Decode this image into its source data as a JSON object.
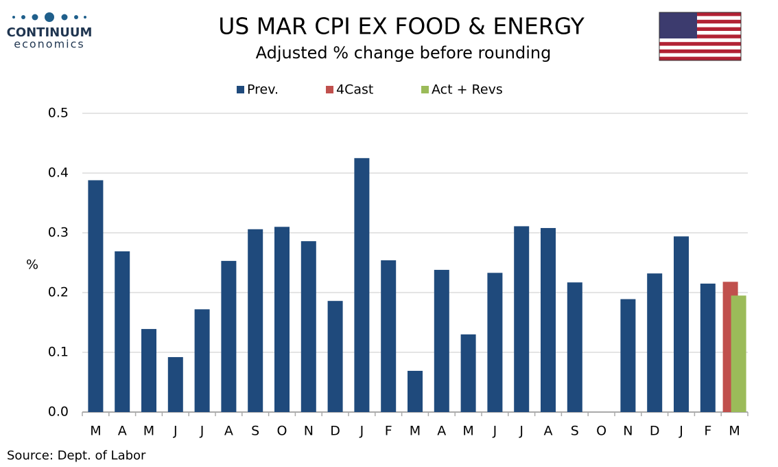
{
  "logo": {
    "name": "CONTINUUM",
    "tagline": "economics"
  },
  "chart_data": {
    "type": "bar",
    "title": "US MAR CPI EX FOOD & ENERGY",
    "subtitle": "Adjusted % change before rounding",
    "y_label": "%",
    "source": "Source: Dept. of Labor",
    "categories": [
      "M",
      "A",
      "M",
      "J",
      "J",
      "A",
      "S",
      "O",
      "N",
      "D",
      "J",
      "F",
      "M",
      "A",
      "M",
      "J",
      "J",
      "A",
      "S",
      "O",
      "N",
      "D",
      "J",
      "F",
      "M"
    ],
    "series": [
      {
        "name": "Prev.",
        "color": "#1f4a7c",
        "values": [
          0.388,
          0.269,
          0.139,
          0.092,
          0.172,
          0.253,
          0.306,
          0.31,
          0.286,
          0.186,
          0.425,
          0.254,
          0.069,
          0.238,
          0.13,
          0.233,
          0.311,
          0.308,
          0.217,
          0,
          0.189,
          0.232,
          0.294,
          0.215,
          null
        ]
      },
      {
        "name": "4Cast",
        "color": "#c0504d",
        "values": [
          null,
          null,
          null,
          null,
          null,
          null,
          null,
          null,
          null,
          null,
          null,
          null,
          null,
          null,
          null,
          null,
          null,
          null,
          null,
          null,
          null,
          null,
          null,
          null,
          0.218
        ]
      },
      {
        "name": "Act + Revs",
        "color": "#9bbb59",
        "values": [
          null,
          null,
          null,
          null,
          null,
          null,
          null,
          null,
          null,
          null,
          null,
          null,
          null,
          null,
          null,
          null,
          null,
          null,
          null,
          null,
          null,
          null,
          null,
          null,
          0.195
        ]
      }
    ],
    "ylim": [
      0,
      0.5
    ],
    "yticks": [
      {
        "value": 0,
        "label": "0.0"
      },
      0.1,
      0.2,
      0.3,
      0.4,
      0.5
    ],
    "grid": true,
    "legend": "top"
  }
}
